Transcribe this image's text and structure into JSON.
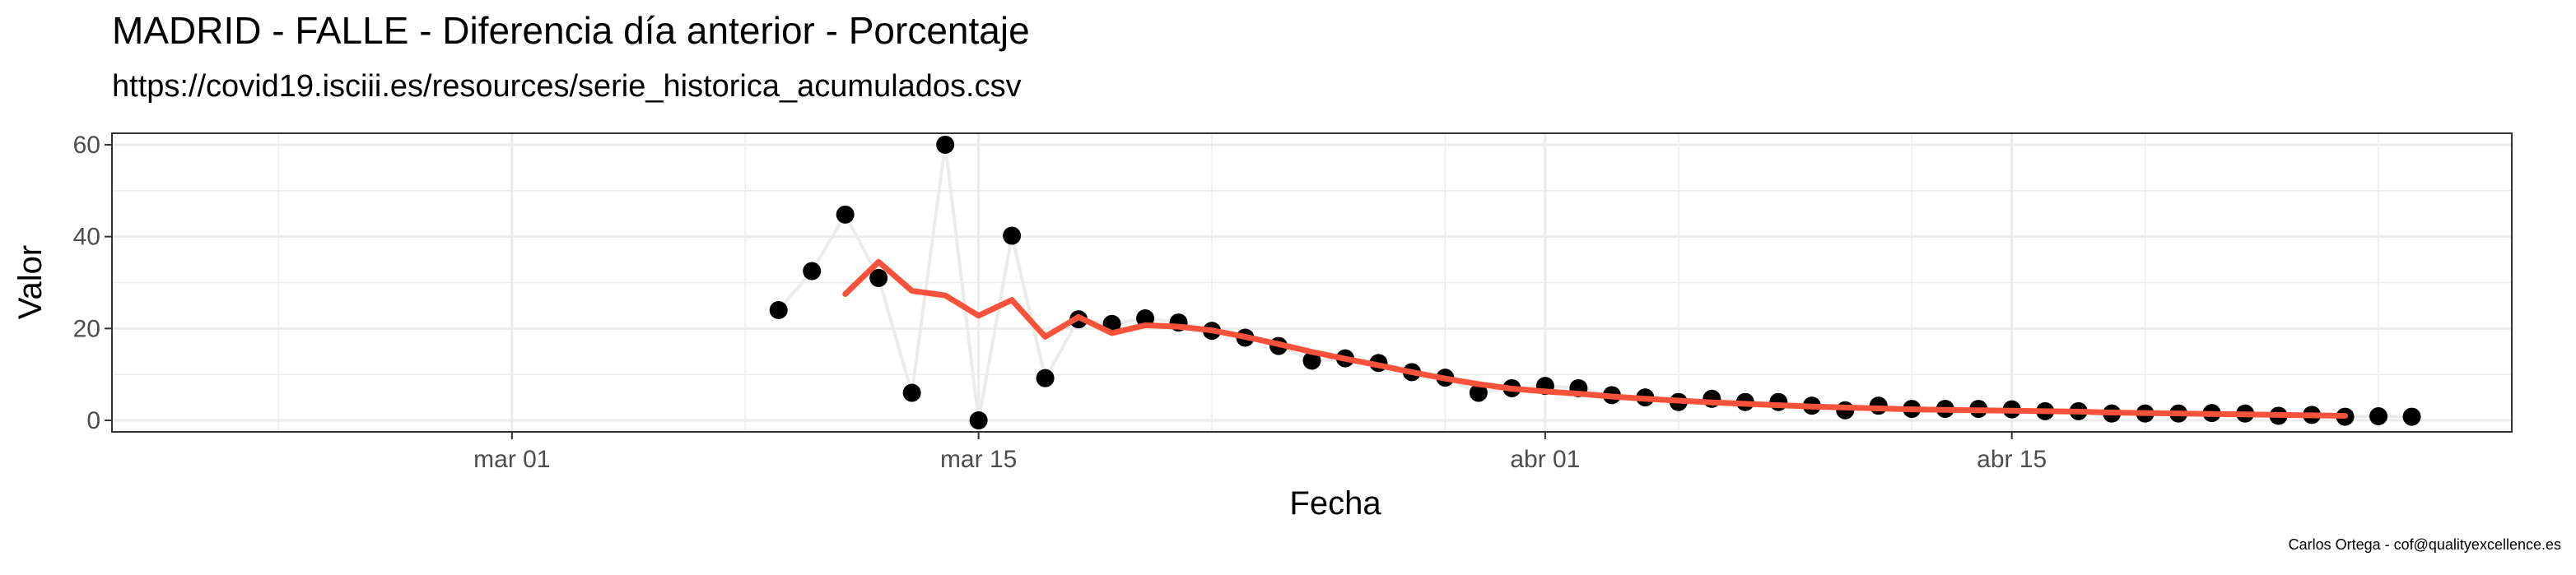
{
  "chart_data": {
    "type": "line",
    "title": "MADRID - FALLE - Diferencia día anterior - Porcentaje",
    "subtitle": "https://covid19.isciii.es/resources/serie_historica_acumulados.csv",
    "caption": "Carlos Ortega - cof@qualityexcellence.es",
    "xlabel": "Fecha",
    "ylabel": "Valor",
    "x_ticks": [
      "mar 01",
      "mar 15",
      "abr 01",
      "abr 15"
    ],
    "y_ticks": [
      0,
      20,
      40,
      60
    ],
    "ylim": [
      -2.5,
      62.5
    ],
    "grid": true,
    "legend": "none",
    "colors": {
      "points": "#000000",
      "raw_line": "#ebebeb",
      "smooth_line": "#f8533a",
      "grid": "#ebebeb",
      "panel_border": "#333333"
    },
    "series": [
      {
        "kind": "points",
        "x": [
          "2020-03-09",
          "2020-03-10",
          "2020-03-11",
          "2020-03-12",
          "2020-03-13",
          "2020-03-14",
          "2020-03-15",
          "2020-03-16",
          "2020-03-17",
          "2020-03-18",
          "2020-03-19",
          "2020-03-20",
          "2020-03-21",
          "2020-03-22",
          "2020-03-23",
          "2020-03-24",
          "2020-03-25",
          "2020-03-26",
          "2020-03-27",
          "2020-03-28",
          "2020-03-29",
          "2020-03-30",
          "2020-03-31",
          "2020-04-01",
          "2020-04-02",
          "2020-04-03",
          "2020-04-04",
          "2020-04-05",
          "2020-04-06",
          "2020-04-07",
          "2020-04-08",
          "2020-04-09",
          "2020-04-10",
          "2020-04-11",
          "2020-04-12",
          "2020-04-13",
          "2020-04-14",
          "2020-04-15",
          "2020-04-16",
          "2020-04-17",
          "2020-04-18",
          "2020-04-19",
          "2020-04-20",
          "2020-04-21",
          "2020-04-22",
          "2020-04-23",
          "2020-04-24",
          "2020-04-25",
          "2020-04-26",
          "2020-04-27"
        ],
        "values": [
          24,
          32.5,
          44.8,
          31,
          6,
          60,
          0,
          40.2,
          9.2,
          22,
          21,
          22.2,
          21.3,
          19.5,
          18,
          16.2,
          13,
          13.5,
          12.5,
          10.5,
          9.3,
          6,
          7,
          7.5,
          7,
          5.5,
          5,
          4,
          4.7,
          4,
          4,
          3.2,
          2.2,
          3.2,
          2.5,
          2.5,
          2.5,
          2.4,
          2,
          2,
          1.5,
          1.5,
          1.5,
          1.6,
          1.5,
          1,
          1.2,
          0.8,
          0.9,
          0.8
        ]
      },
      {
        "kind": "smoothed",
        "x": [
          "2020-03-11",
          "2020-03-12",
          "2020-03-13",
          "2020-03-14",
          "2020-03-15",
          "2020-03-16",
          "2020-03-17",
          "2020-03-18",
          "2020-03-19",
          "2020-03-20",
          "2020-03-21",
          "2020-03-22",
          "2020-03-23",
          "2020-03-24",
          "2020-03-25",
          "2020-03-26",
          "2020-03-27",
          "2020-03-28",
          "2020-03-29",
          "2020-03-30",
          "2020-03-31",
          "2020-04-01",
          "2020-04-02",
          "2020-04-03",
          "2020-04-04",
          "2020-04-05",
          "2020-04-06",
          "2020-04-07",
          "2020-04-08",
          "2020-04-09",
          "2020-04-10",
          "2020-04-11",
          "2020-04-12",
          "2020-04-13",
          "2020-04-14",
          "2020-04-15",
          "2020-04-16",
          "2020-04-17",
          "2020-04-18",
          "2020-04-19",
          "2020-04-20",
          "2020-04-21",
          "2020-04-22",
          "2020-04-23",
          "2020-04-24",
          "2020-04-25"
        ],
        "values": [
          27.5,
          34.5,
          28.2,
          27.2,
          22.8,
          26.2,
          18.2,
          22.5,
          19,
          20.7,
          20.4,
          19.6,
          18.2,
          16.6,
          14.9,
          13.4,
          12,
          10.5,
          9.1,
          7.9,
          6.9,
          6.3,
          5.8,
          5.2,
          4.7,
          4.3,
          3.9,
          3.6,
          3.3,
          3,
          2.8,
          2.6,
          2.4,
          2.3,
          2.2,
          2.1,
          2,
          1.9,
          1.7,
          1.6,
          1.5,
          1.4,
          1.3,
          1.2,
          1.1,
          1.0
        ]
      }
    ]
  }
}
